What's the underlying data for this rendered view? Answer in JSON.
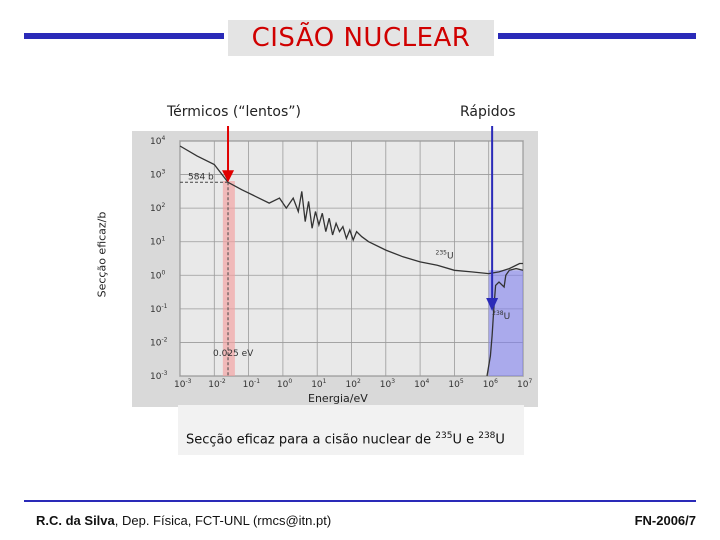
{
  "slide": {
    "title": "CISÃO NUCLEAR",
    "thermal_label": "Térmicos (“lentos”)",
    "fast_label": "Rápidos",
    "caption_prefix": "Secção eficaz para a cisão nuclear de ",
    "caption_iso1_mass": "235",
    "caption_iso1_symbol": "U",
    "caption_joiner": " e ",
    "caption_iso2_mass": "238",
    "caption_iso2_symbol": "U",
    "footer_author": "R.C. da Silva",
    "footer_affiliation": ", Dep. Física, FCT-UNL (rmcs@itn.pt)",
    "footer_code": "FN-2006/7",
    "accent_color": "#2a2ab8",
    "title_color": "#d00000",
    "arrow_color": "#e00000",
    "fast_arrow_color": "#2a2ab8",
    "thermal_band_color": "#f4a0a0",
    "fast_band_color": "#8080ee"
  },
  "chart_data": {
    "type": "line",
    "xscale": "log",
    "yscale": "log",
    "xlabel": "Energia/eV",
    "ylabel": "Secção eficaz/b",
    "xlim_exp": [
      -3,
      7
    ],
    "ylim_exp": [
      -3,
      4
    ],
    "x_ticks": [
      {
        "exp": -3,
        "label": "10",
        "sup": "-3"
      },
      {
        "exp": -2,
        "label": "10",
        "sup": "-2"
      },
      {
        "exp": -1,
        "label": "10",
        "sup": "-1"
      },
      {
        "exp": 0,
        "label": "10",
        "sup": "0"
      },
      {
        "exp": 1,
        "label": "10",
        "sup": "1"
      },
      {
        "exp": 2,
        "label": "10",
        "sup": "2"
      },
      {
        "exp": 3,
        "label": "10",
        "sup": "3"
      },
      {
        "exp": 4,
        "label": "10",
        "sup": "4"
      },
      {
        "exp": 5,
        "label": "10",
        "sup": "5"
      },
      {
        "exp": 6,
        "label": "10",
        "sup": "6"
      },
      {
        "exp": 7,
        "label": "10",
        "sup": "7"
      }
    ],
    "y_ticks": [
      {
        "exp": 4,
        "label": "10",
        "sup": "4"
      },
      {
        "exp": 3,
        "label": "10",
        "sup": "3"
      },
      {
        "exp": 2,
        "label": "10",
        "sup": "2"
      },
      {
        "exp": 1,
        "label": "10",
        "sup": "1"
      },
      {
        "exp": 0,
        "label": "10",
        "sup": "0"
      },
      {
        "exp": -1,
        "label": "10",
        "sup": "-1"
      },
      {
        "exp": -2,
        "label": "10",
        "sup": "-2"
      },
      {
        "exp": -3,
        "label": "10",
        "sup": "-3"
      }
    ],
    "annotations": {
      "thermal_value": "584 b",
      "thermal_energy": "0.025 eV",
      "u235_mass": "235",
      "u235_symbol": "U",
      "u238_mass": "238",
      "u238_symbol": "U"
    },
    "thermal_point": {
      "x_exp": -1.6,
      "y_exp": 2.77
    },
    "thermal_band_exp": [
      -1.75,
      -1.4
    ],
    "fast_band_exp": [
      6.0,
      7.0
    ],
    "series": [
      {
        "name": "235U",
        "points_log": [
          [
            -3,
            3.85
          ],
          [
            -2.5,
            3.55
          ],
          [
            -2,
            3.3
          ],
          [
            -1.6,
            2.77
          ],
          [
            -1.2,
            2.55
          ],
          [
            -0.8,
            2.35
          ],
          [
            -0.4,
            2.15
          ],
          [
            -0.1,
            2.3
          ],
          [
            0.1,
            2.0
          ],
          [
            0.3,
            2.3
          ],
          [
            0.45,
            1.9
          ],
          [
            0.55,
            2.5
          ],
          [
            0.65,
            1.6
          ],
          [
            0.75,
            2.2
          ],
          [
            0.85,
            1.4
          ],
          [
            0.95,
            1.9
          ],
          [
            1.05,
            1.5
          ],
          [
            1.15,
            1.85
          ],
          [
            1.25,
            1.3
          ],
          [
            1.35,
            1.7
          ],
          [
            1.45,
            1.2
          ],
          [
            1.55,
            1.55
          ],
          [
            1.65,
            1.3
          ],
          [
            1.75,
            1.45
          ],
          [
            1.85,
            1.1
          ],
          [
            1.95,
            1.35
          ],
          [
            2.05,
            1.05
          ],
          [
            2.15,
            1.3
          ],
          [
            2.3,
            1.15
          ],
          [
            2.5,
            1.0
          ],
          [
            3.0,
            0.75
          ],
          [
            3.5,
            0.55
          ],
          [
            4.0,
            0.4
          ],
          [
            4.5,
            0.3
          ],
          [
            5.0,
            0.15
          ],
          [
            5.5,
            0.1
          ],
          [
            6.0,
            0.05
          ],
          [
            6.3,
            0.1
          ],
          [
            6.6,
            0.2
          ],
          [
            6.9,
            0.35
          ],
          [
            7.0,
            0.35
          ]
        ]
      },
      {
        "name": "238U",
        "points_log": [
          [
            5.95,
            -3.0
          ],
          [
            6.05,
            -2.4
          ],
          [
            6.1,
            -1.8
          ],
          [
            6.15,
            -1.0
          ],
          [
            6.2,
            -0.3
          ],
          [
            6.3,
            -0.2
          ],
          [
            6.45,
            -0.35
          ],
          [
            6.5,
            0.0
          ],
          [
            6.6,
            0.15
          ],
          [
            6.8,
            0.2
          ],
          [
            7.0,
            0.15
          ]
        ]
      }
    ]
  }
}
